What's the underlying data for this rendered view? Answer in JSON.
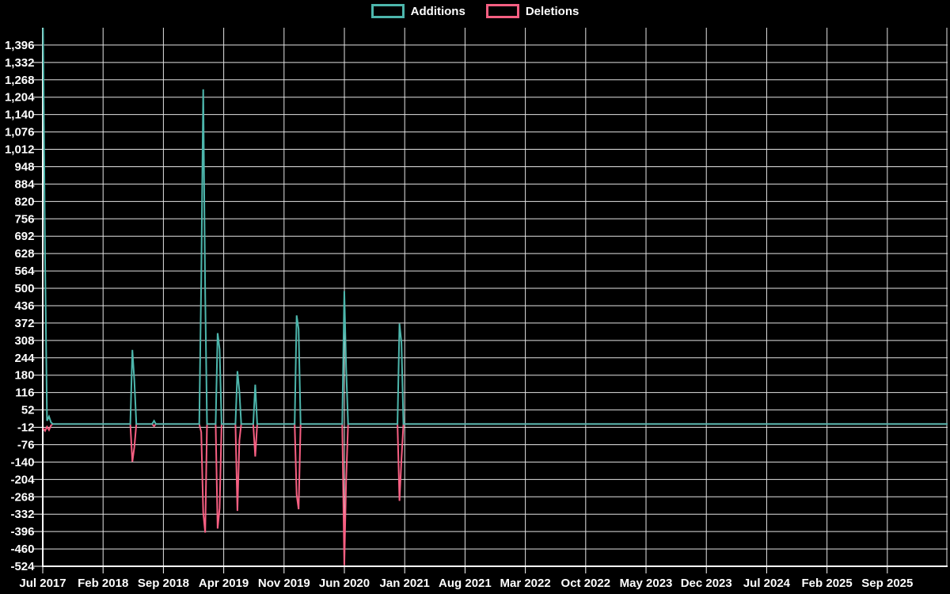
{
  "page": {
    "background": "#000000"
  },
  "legend": {
    "items": [
      {
        "label": "Additions",
        "color": "#4db6ac"
      },
      {
        "label": "Deletions",
        "color": "#f75f82"
      }
    ]
  },
  "chart_data": {
    "type": "line",
    "title": "",
    "xlabel": "",
    "ylabel": "",
    "grid": true,
    "legend_position": "top center",
    "ylim": [
      -524,
      1460
    ],
    "x_tick_labels": [
      "Jul 2017",
      "Feb 2018",
      "Sep 2018",
      "Apr 2019",
      "Nov 2019",
      "Jun 2020",
      "Jan 2021",
      "Aug 2021",
      "Mar 2022",
      "Oct 2022",
      "May 2023",
      "Dec 2023",
      "Jul 2024",
      "Feb 2025",
      "Sep 2025"
    ],
    "y_tick_labels": [
      "1,396",
      "1,332",
      "1,268",
      "1,204",
      "1,140",
      "1,076",
      "1,012",
      "948",
      "884",
      "820",
      "756",
      "692",
      "628",
      "564",
      "500",
      "436",
      "372",
      "308",
      "244",
      "180",
      "116",
      "52",
      "-12",
      "-76",
      "-140",
      "-204",
      "-268",
      "-332",
      "-396",
      "-460",
      "-524"
    ],
    "y_tick_values": [
      1396,
      1332,
      1268,
      1204,
      1140,
      1076,
      1012,
      948,
      884,
      820,
      756,
      692,
      628,
      564,
      500,
      436,
      372,
      308,
      244,
      180,
      116,
      52,
      -12,
      -76,
      -140,
      -204,
      -268,
      -332,
      -396,
      -460,
      -524
    ],
    "colors": {
      "background": "#000000",
      "grid": "#e3e3e3",
      "axis": "#ffffff",
      "text": "#ffffff",
      "additions": "#4db6ac",
      "deletions": "#f75f82"
    },
    "series": [
      {
        "name": "Additions",
        "color": "#4db6ac",
        "points": [
          [
            "2017-07-02",
            1459
          ],
          [
            "2017-07-09",
            620
          ],
          [
            "2017-07-16",
            12
          ],
          [
            "2017-07-23",
            28
          ],
          [
            "2017-07-30",
            6
          ],
          [
            "2017-08-06",
            0
          ],
          [
            "2018-05-06",
            0
          ],
          [
            "2018-05-13",
            273
          ],
          [
            "2018-05-20",
            160
          ],
          [
            "2018-05-27",
            0
          ],
          [
            "2018-07-22",
            0
          ],
          [
            "2018-07-29",
            12
          ],
          [
            "2018-08-05",
            0
          ],
          [
            "2019-01-06",
            0
          ],
          [
            "2019-01-13",
            530
          ],
          [
            "2019-01-20",
            1233
          ],
          [
            "2019-01-27",
            480
          ],
          [
            "2019-02-03",
            0
          ],
          [
            "2019-03-03",
            0
          ],
          [
            "2019-03-10",
            335
          ],
          [
            "2019-03-17",
            275
          ],
          [
            "2019-03-24",
            0
          ],
          [
            "2019-05-12",
            0
          ],
          [
            "2019-05-19",
            195
          ],
          [
            "2019-05-26",
            120
          ],
          [
            "2019-06-02",
            0
          ],
          [
            "2019-07-14",
            0
          ],
          [
            "2019-07-21",
            145
          ],
          [
            "2019-07-28",
            0
          ],
          [
            "2019-12-08",
            0
          ],
          [
            "2019-12-15",
            400
          ],
          [
            "2019-12-22",
            350
          ],
          [
            "2019-12-29",
            0
          ],
          [
            "2020-05-24",
            0
          ],
          [
            "2020-05-31",
            490
          ],
          [
            "2020-06-07",
            210
          ],
          [
            "2020-06-14",
            0
          ],
          [
            "2020-12-06",
            0
          ],
          [
            "2020-12-13",
            370
          ],
          [
            "2020-12-20",
            300
          ],
          [
            "2020-12-27",
            0
          ]
        ]
      },
      {
        "name": "Deletions",
        "color": "#f75f82",
        "points": [
          [
            "2017-07-02",
            -15
          ],
          [
            "2017-07-09",
            -25
          ],
          [
            "2017-07-16",
            -10
          ],
          [
            "2017-07-23",
            -22
          ],
          [
            "2017-07-30",
            -5
          ],
          [
            "2017-08-06",
            0
          ],
          [
            "2018-05-06",
            0
          ],
          [
            "2018-05-13",
            -139
          ],
          [
            "2018-05-20",
            -85
          ],
          [
            "2018-05-27",
            0
          ],
          [
            "2018-07-22",
            0
          ],
          [
            "2018-07-29",
            -8
          ],
          [
            "2018-08-05",
            0
          ],
          [
            "2019-01-06",
            0
          ],
          [
            "2019-01-13",
            -30
          ],
          [
            "2019-01-20",
            -326
          ],
          [
            "2019-01-27",
            -400
          ],
          [
            "2019-02-03",
            0
          ],
          [
            "2019-03-03",
            0
          ],
          [
            "2019-03-10",
            -385
          ],
          [
            "2019-03-17",
            -310
          ],
          [
            "2019-03-24",
            0
          ],
          [
            "2019-05-12",
            0
          ],
          [
            "2019-05-19",
            -320
          ],
          [
            "2019-05-26",
            -60
          ],
          [
            "2019-06-02",
            0
          ],
          [
            "2019-07-14",
            0
          ],
          [
            "2019-07-21",
            -120
          ],
          [
            "2019-07-28",
            0
          ],
          [
            "2019-12-08",
            0
          ],
          [
            "2019-12-15",
            -260
          ],
          [
            "2019-12-22",
            -314
          ],
          [
            "2019-12-29",
            0
          ],
          [
            "2020-05-24",
            0
          ],
          [
            "2020-05-31",
            -520
          ],
          [
            "2020-06-07",
            -210
          ],
          [
            "2020-06-14",
            0
          ],
          [
            "2020-12-06",
            0
          ],
          [
            "2020-12-13",
            -283
          ],
          [
            "2020-12-20",
            -130
          ],
          [
            "2020-12-27",
            0
          ]
        ]
      }
    ]
  }
}
